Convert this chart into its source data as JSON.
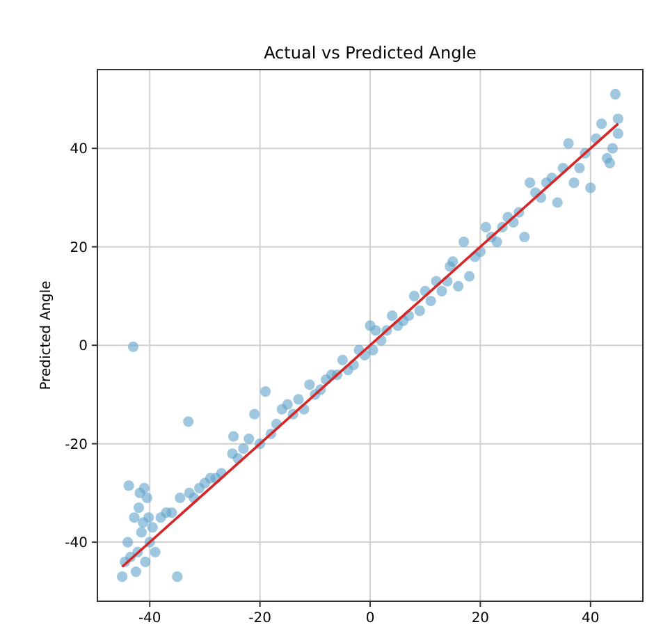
{
  "chart_data": {
    "type": "scatter",
    "title": "Actual vs Predicted Angle",
    "ylabel": "Predicted Angle",
    "xlim": [
      -49.5,
      49.5
    ],
    "ylim": [
      -52,
      56
    ],
    "xticks": [
      -40,
      -20,
      0,
      20,
      40
    ],
    "yticks": [
      -40,
      -20,
      0,
      20,
      40
    ],
    "grid": true,
    "series": [
      {
        "color": "#5fa2c9",
        "marker": "circle",
        "x": [
          -45,
          -44.5,
          -44,
          -43.8,
          -43.5,
          -43,
          -42.8,
          -42.5,
          -42.2,
          -42,
          -41.8,
          -41.5,
          -41.2,
          -41,
          -40.8,
          -40.5,
          -40.2,
          -40,
          -39.5,
          -39,
          -38,
          -37,
          -36,
          -35,
          -34.5,
          -33,
          -32.8,
          -32,
          -31,
          -30,
          -29,
          -28,
          -27,
          -25,
          -24.8,
          -24,
          -23,
          -22,
          -21,
          -20,
          -19,
          -18,
          -17,
          -16,
          -15,
          -14,
          -13,
          -12,
          -11,
          -10,
          -9,
          -8,
          -7,
          -6,
          -5,
          -4,
          -3,
          -2,
          -1,
          0,
          0.5,
          1,
          2,
          3,
          4,
          5,
          6,
          7,
          8,
          9,
          10,
          11,
          12,
          13,
          14,
          14.5,
          15,
          16,
          17,
          18,
          19,
          20,
          21,
          22,
          23,
          24,
          25,
          26,
          27,
          28,
          29,
          30,
          31,
          32,
          33,
          34,
          35,
          36,
          37,
          38,
          39,
          40,
          41,
          42,
          43,
          43.5,
          44,
          44.5,
          45,
          45
        ],
        "values": [
          -47,
          -44,
          -40,
          -28.5,
          -43,
          -0.3,
          -35,
          -46,
          -42,
          -33,
          -30,
          -38,
          -36,
          -29,
          -44,
          -31,
          -35,
          -40,
          -37,
          -42,
          -35,
          -34,
          -34,
          -47,
          -31,
          -15.5,
          -30,
          -31,
          -29,
          -28,
          -27,
          -27,
          -26,
          -22,
          -18.5,
          -23,
          -21,
          -19,
          -14,
          -20,
          -9.4,
          -18,
          -16,
          -13,
          -12,
          -14,
          -11,
          -13,
          -8,
          -10,
          -9,
          -7,
          -6,
          -6,
          -3,
          -5,
          -4,
          -1,
          -2,
          4,
          -1,
          3,
          1,
          3,
          6,
          4,
          5,
          6,
          10,
          7,
          11,
          9,
          13,
          11,
          13,
          16,
          17,
          12,
          21,
          14,
          18,
          19,
          24,
          22,
          21,
          24,
          26,
          25,
          27,
          22,
          33,
          31,
          30,
          33,
          34,
          29,
          36,
          41,
          33,
          36,
          39,
          32,
          42,
          45,
          38,
          37,
          40,
          51,
          46,
          43
        ]
      },
      {
        "type": "line",
        "color": "#d62728",
        "x": [
          -45,
          45
        ],
        "values": [
          -45,
          45
        ]
      }
    ]
  }
}
